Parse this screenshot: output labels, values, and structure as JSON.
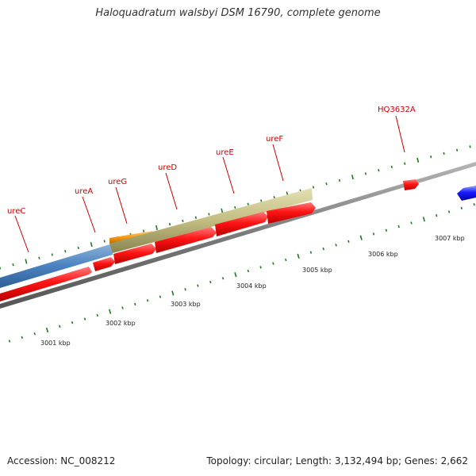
{
  "title": "Haloquadratum walsbyi DSM 16790, complete genome",
  "footer": {
    "accession": "Accession: NC_008212",
    "summary": "Topology: circular; Length: 3,132,494 bp; Genes: 2,662"
  },
  "scale_labels": [
    "3001 kbp",
    "3002 kbp",
    "3003 kbp",
    "3004 kbp",
    "3005 kbp",
    "3006 kbp",
    "3007 kbp"
  ],
  "gene_labels": [
    "ureC",
    "ureA",
    "ureG",
    "ureD",
    "ureE",
    "ureF",
    "HQ3632A"
  ],
  "colors": {
    "backbone": "#8a8a8a",
    "cds": "#ff1a1a",
    "cds_reverse": "#1a1aff",
    "operon_blue": "#4a82c0",
    "operon_orange": "#f59a12",
    "operon_khaki": "#c2bd80",
    "ticks": "#1f7a1f",
    "label_red": "#cc0000"
  }
}
